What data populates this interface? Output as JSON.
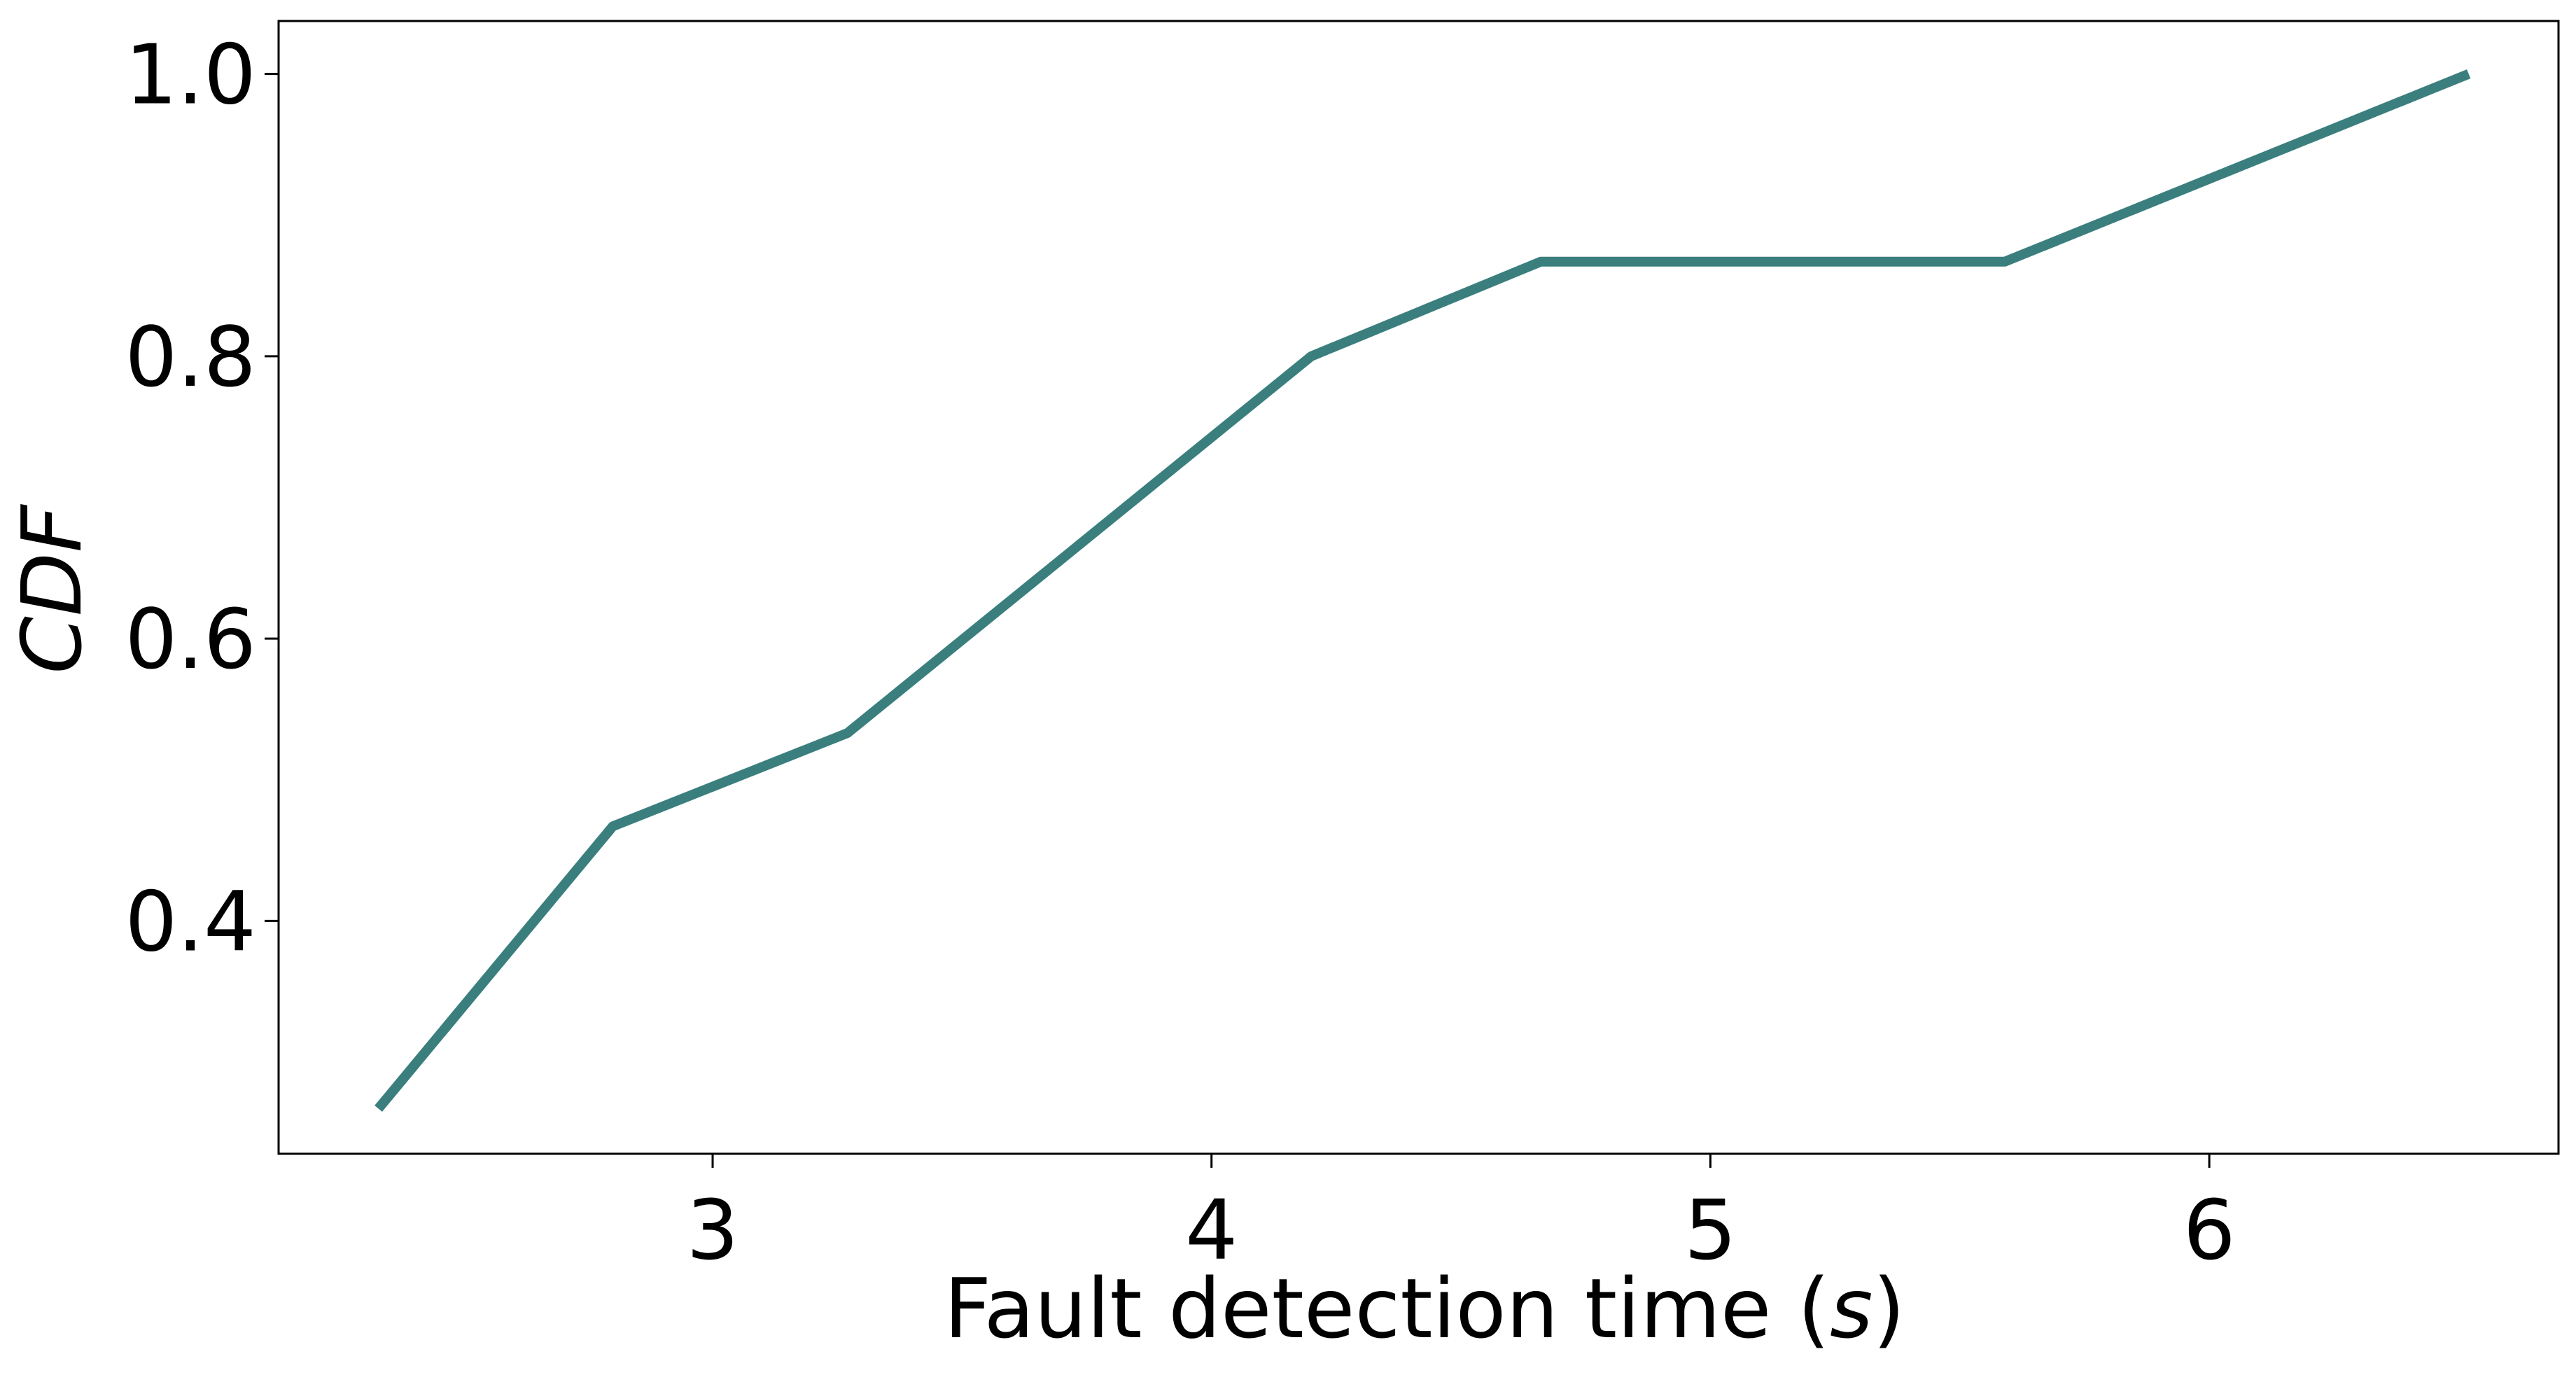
{
  "chart_data": {
    "type": "line",
    "xlabel_parts": [
      "Fault detection time (",
      "s",
      ")"
    ],
    "ylabel": "CDF",
    "xlim": [
      2.13,
      6.7
    ],
    "ylim": [
      0.235,
      1.0375
    ],
    "xticks": [
      3,
      4,
      5,
      6
    ],
    "xtick_labels": [
      "3",
      "4",
      "5",
      "6"
    ],
    "yticks": [
      0.4,
      0.6,
      0.8,
      1.0
    ],
    "ytick_labels": [
      "0.4",
      "0.6",
      "0.8",
      "1.0"
    ],
    "grid": false,
    "series": [
      {
        "color": "#3a7f7e",
        "x": [
          2.33,
          2.8,
          3.27,
          4.2,
          4.66,
          5.59,
          6.52
        ],
        "y": [
          0.267,
          0.467,
          0.533,
          0.8,
          0.867,
          0.867,
          1.0
        ]
      }
    ]
  }
}
